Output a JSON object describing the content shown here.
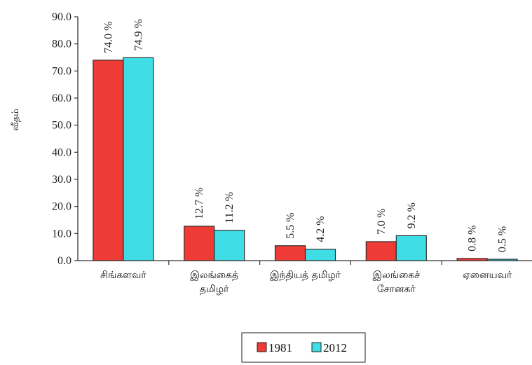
{
  "chart_data": {
    "type": "bar",
    "ylabel": "வீதம்",
    "ylim": [
      0,
      90
    ],
    "ytick_step": 10,
    "ytick_labels": [
      "0.0",
      "10.0",
      "20.0",
      "30.0",
      "40.0",
      "50.0",
      "60.0",
      "70.0",
      "80.0",
      "90.0"
    ],
    "categories": [
      [
        "சிங்களவர்"
      ],
      [
        "இலங்கைத்",
        "தமிழர்"
      ],
      [
        "இந்தியத் தமிழர்"
      ],
      [
        "இலங்கைச்",
        "சோனகர்"
      ],
      [
        "ஏனையவர்"
      ]
    ],
    "series": [
      {
        "name": "1981",
        "color": "#ef3b36",
        "values": [
          74.0,
          12.7,
          5.5,
          7.0,
          0.8
        ],
        "labels": [
          "74.0 %",
          "12.7 %",
          "5.5 %",
          "7.0 %",
          "0.8 %"
        ]
      },
      {
        "name": "2012",
        "color": "#3fdde6",
        "values": [
          74.9,
          11.2,
          4.2,
          9.2,
          0.5
        ],
        "labels": [
          "74.9 %",
          "11.2 %",
          "4.2 %",
          "9.2 %",
          "0.5 %"
        ]
      }
    ],
    "legend": "bottom"
  }
}
